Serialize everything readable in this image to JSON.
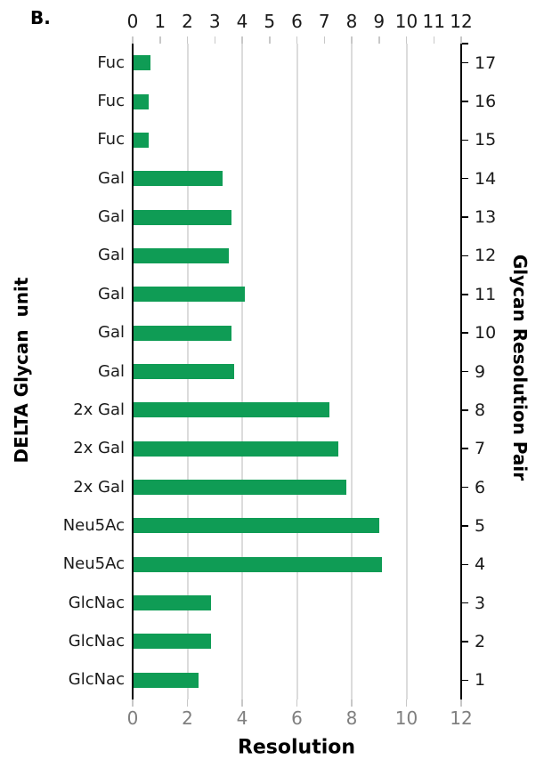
{
  "figure": {
    "panel_label": "B.",
    "left_axis_title": "DELTA Glycan  unit",
    "right_axis_title": "Glycan Resolution Pair",
    "x_axis_title": "Resolution"
  },
  "chart_data": {
    "type": "bar",
    "orientation": "horizontal",
    "title": "",
    "xlabel": "Resolution",
    "ylabel_left": "DELTA Glycan unit",
    "ylabel_right": "Glycan Resolution Pair",
    "xlim": [
      0,
      12
    ],
    "x_ticks_top": [
      0,
      1,
      2,
      3,
      4,
      5,
      6,
      7,
      8,
      9,
      10,
      11,
      12
    ],
    "x_ticks_bottom": [
      0,
      2,
      4,
      6,
      8,
      10,
      12
    ],
    "gridlines_x": [
      2,
      4,
      6,
      8,
      10
    ],
    "grid": true,
    "legend": "none",
    "rows": [
      {
        "pair": 17,
        "unit": "Fuc",
        "resolution": 0.65
      },
      {
        "pair": 16,
        "unit": "Fuc",
        "resolution": 0.6
      },
      {
        "pair": 15,
        "unit": "Fuc",
        "resolution": 0.6
      },
      {
        "pair": 14,
        "unit": "Gal",
        "resolution": 3.3
      },
      {
        "pair": 13,
        "unit": "Gal",
        "resolution": 3.6
      },
      {
        "pair": 12,
        "unit": "Gal",
        "resolution": 3.5
      },
      {
        "pair": 11,
        "unit": "Gal",
        "resolution": 4.1
      },
      {
        "pair": 10,
        "unit": "Gal",
        "resolution": 3.6
      },
      {
        "pair": 9,
        "unit": "Gal",
        "resolution": 3.7
      },
      {
        "pair": 8,
        "unit": "2x Gal",
        "resolution": 7.2
      },
      {
        "pair": 7,
        "unit": "2x Gal",
        "resolution": 7.5
      },
      {
        "pair": 6,
        "unit": "2x Gal",
        "resolution": 7.8
      },
      {
        "pair": 5,
        "unit": "Neu5Ac",
        "resolution": 9.0
      },
      {
        "pair": 4,
        "unit": "Neu5Ac",
        "resolution": 9.1
      },
      {
        "pair": 3,
        "unit": "GlcNac",
        "resolution": 2.85
      },
      {
        "pair": 2,
        "unit": "GlcNac",
        "resolution": 2.85
      },
      {
        "pair": 1,
        "unit": "GlcNac",
        "resolution": 2.4
      }
    ],
    "colors": {
      "bar": "#0f9c55",
      "grid": "#dcdcdc",
      "minor_tick": "#c8c8c8",
      "axis": "#000000",
      "top_tick_label": "#1a1a1a",
      "bottom_tick_label": "#7f7f7f"
    }
  }
}
